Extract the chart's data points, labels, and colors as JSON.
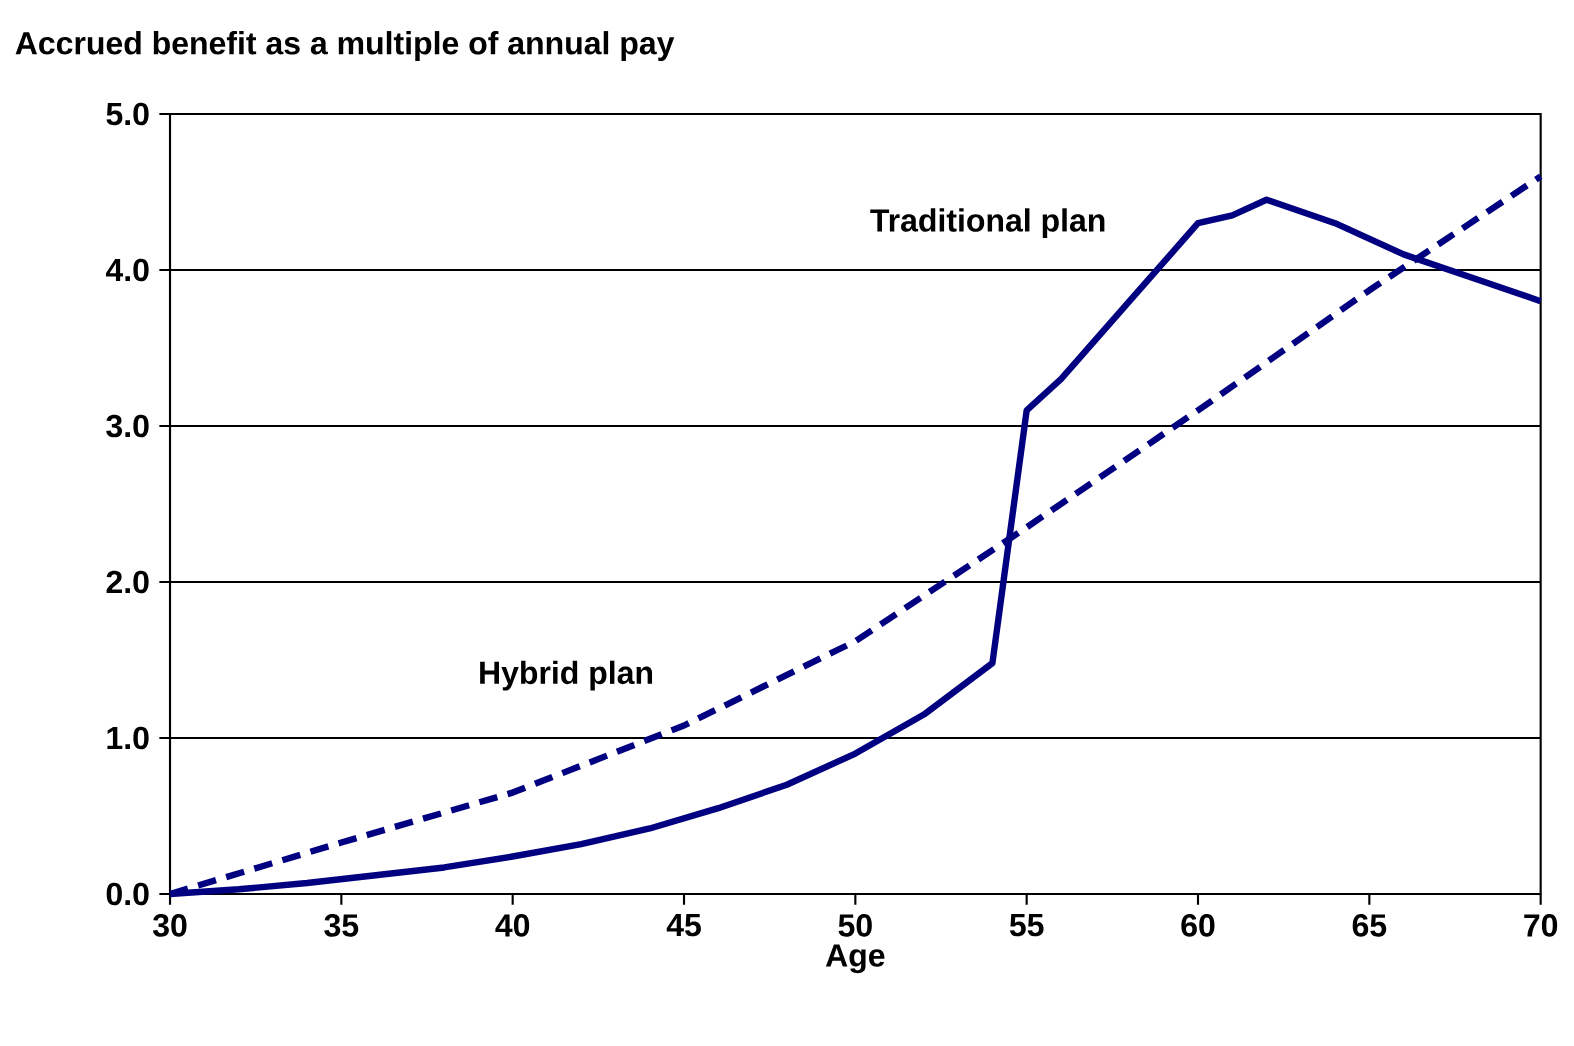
{
  "chart_data": {
    "type": "line",
    "title": "Accrued benefit as a multiple of annual pay",
    "xlabel": "Age",
    "xlim": [
      30,
      70
    ],
    "xticks": [
      30,
      35,
      40,
      45,
      50,
      55,
      60,
      65,
      70
    ],
    "ylim": [
      0,
      5
    ],
    "yticks": [
      {
        "value": 0,
        "label": "0.0"
      },
      {
        "value": 1,
        "label": "1.0"
      },
      {
        "value": 2,
        "label": "2.0"
      },
      {
        "value": 3,
        "label": "3.0"
      },
      {
        "value": 4,
        "label": "4.0"
      },
      {
        "value": 5,
        "label": "5.0"
      }
    ],
    "grid": "y",
    "legend": false,
    "marker": "none",
    "series": [
      {
        "name": "Traditional plan",
        "color": "#000080",
        "line_style": "solid",
        "x": [
          30,
          32,
          34,
          36,
          38,
          40,
          42,
          44,
          46,
          48,
          50,
          52,
          54,
          55,
          56,
          58,
          60,
          61,
          62,
          64,
          66,
          68,
          70
        ],
        "values": [
          0,
          0.03,
          0.07,
          0.12,
          0.17,
          0.24,
          0.32,
          0.42,
          0.55,
          0.7,
          0.9,
          1.15,
          1.48,
          3.1,
          3.3,
          3.8,
          4.3,
          4.35,
          4.45,
          4.3,
          4.1,
          3.95,
          3.8
        ]
      },
      {
        "name": "Hybrid plan",
        "color": "#000080",
        "line_style": "dashed",
        "x": [
          30,
          35,
          40,
          45,
          50,
          55,
          60,
          65,
          70
        ],
        "values": [
          0,
          0.33,
          0.65,
          1.08,
          1.62,
          2.35,
          3.1,
          3.87,
          4.6
        ]
      }
    ]
  }
}
